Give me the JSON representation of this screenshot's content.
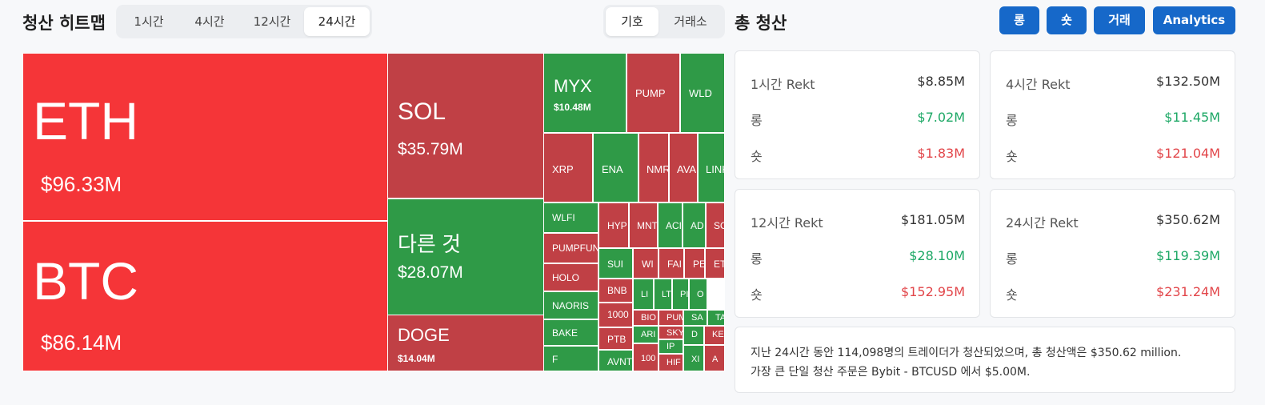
{
  "header": {
    "title": "청산 히트맵",
    "time_tabs": [
      "1시간",
      "4시간",
      "12시간",
      "24시간"
    ],
    "active_time_tab": "24시간",
    "group_tabs": [
      "기호",
      "거래소"
    ],
    "active_group_tab": "기호",
    "total_title": "총 청산",
    "actions": [
      "롱",
      "숏",
      "거래",
      "Analytics"
    ]
  },
  "treemap": {
    "tiles": [
      {
        "symbol": "ETH",
        "amount": "$96.33M",
        "side": "red"
      },
      {
        "symbol": "BTC",
        "amount": "$86.14M",
        "side": "red"
      },
      {
        "symbol": "SOL",
        "amount": "$35.79M",
        "side": "dark-red"
      },
      {
        "symbol": "다른 것",
        "amount": "$28.07M",
        "side": "green"
      },
      {
        "symbol": "DOGE",
        "amount": "$14.04M",
        "side": "dark-red"
      },
      {
        "symbol": "MYX",
        "amount": "$10.48M",
        "side": "green"
      },
      {
        "symbol": "PUMP",
        "amount": "",
        "side": "dark-red"
      },
      {
        "symbol": "WLD",
        "amount": "",
        "side": "green"
      },
      {
        "symbol": "XRP",
        "amount": "",
        "side": "dark-red"
      },
      {
        "symbol": "ENA",
        "amount": "",
        "side": "green"
      },
      {
        "symbol": "NMR",
        "amount": "",
        "side": "dark-red"
      },
      {
        "symbol": "AVA",
        "amount": "",
        "side": "dark-red"
      },
      {
        "symbol": "LINK",
        "amount": "",
        "side": "green"
      },
      {
        "symbol": "WLFI",
        "amount": "",
        "side": "green"
      },
      {
        "symbol": "PUMPFUN",
        "amount": "",
        "side": "dark-red"
      },
      {
        "symbol": "HOLO",
        "amount": "",
        "side": "dark-red"
      },
      {
        "symbol": "NAORIS",
        "amount": "",
        "side": "green"
      },
      {
        "symbol": "BAKE",
        "amount": "",
        "side": "green"
      },
      {
        "symbol": "F",
        "amount": "",
        "side": "green"
      },
      {
        "symbol": "HYP",
        "amount": "",
        "side": "dark-red"
      },
      {
        "symbol": "MNT",
        "amount": "",
        "side": "dark-red"
      },
      {
        "symbol": "ACI",
        "amount": "",
        "side": "green"
      },
      {
        "symbol": "AD",
        "amount": "",
        "side": "green"
      },
      {
        "symbol": "SO",
        "amount": "",
        "side": "dark-red"
      },
      {
        "symbol": "SUI",
        "amount": "",
        "side": "green"
      },
      {
        "symbol": "WI",
        "amount": "",
        "side": "dark-red"
      },
      {
        "symbol": "FAI",
        "amount": "",
        "side": "dark-red"
      },
      {
        "symbol": "PE",
        "amount": "",
        "side": "dark-red"
      },
      {
        "symbol": "ET",
        "amount": "",
        "side": "dark-red"
      },
      {
        "symbol": "BNB",
        "amount": "",
        "side": "dark-red"
      },
      {
        "symbol": "LI",
        "amount": "",
        "side": "green"
      },
      {
        "symbol": "LT",
        "amount": "",
        "side": "green"
      },
      {
        "symbol": "PI",
        "amount": "",
        "side": "green"
      },
      {
        "symbol": "O",
        "amount": "",
        "side": "green"
      },
      {
        "symbol": "1000",
        "amount": "",
        "side": "dark-red"
      },
      {
        "symbol": "BIO",
        "amount": "",
        "side": "dark-red"
      },
      {
        "symbol": "PUM",
        "amount": "",
        "side": "dark-red"
      },
      {
        "symbol": "TA",
        "amount": "",
        "side": "green"
      },
      {
        "symbol": "SA",
        "amount": "",
        "side": "green"
      },
      {
        "symbol": "PTB",
        "amount": "",
        "side": "dark-red"
      },
      {
        "symbol": "SKY",
        "amount": "",
        "side": "dark-red"
      },
      {
        "symbol": "ARI",
        "amount": "",
        "side": "green"
      },
      {
        "symbol": "D",
        "amount": "",
        "side": "green"
      },
      {
        "symbol": "KE",
        "amount": "",
        "side": "dark-red"
      },
      {
        "symbol": "IP",
        "amount": "",
        "side": "green"
      },
      {
        "symbol": "AVNT",
        "amount": "",
        "side": "green"
      },
      {
        "symbol": "100",
        "amount": "",
        "side": "dark-red"
      },
      {
        "symbol": "HIF",
        "amount": "",
        "side": "dark-red"
      },
      {
        "symbol": "XI",
        "amount": "",
        "side": "green"
      },
      {
        "symbol": "A",
        "amount": "",
        "side": "dark-red"
      }
    ]
  },
  "stats": [
    {
      "label": "1시간 Rekt",
      "total": "$8.85M",
      "long_label": "롱",
      "long": "$7.02M",
      "short_label": "숏",
      "short": "$1.83M"
    },
    {
      "label": "4시간 Rekt",
      "total": "$132.50M",
      "long_label": "롱",
      "long": "$11.45M",
      "short_label": "숏",
      "short": "$121.04M"
    },
    {
      "label": "12시간 Rekt",
      "total": "$181.05M",
      "long_label": "롱",
      "long": "$28.10M",
      "short_label": "숏",
      "short": "$152.95M"
    },
    {
      "label": "24시간 Rekt",
      "total": "$350.62M",
      "long_label": "롱",
      "long": "$119.39M",
      "short_label": "숏",
      "short": "$231.24M"
    }
  ],
  "summary": {
    "line1": "지난 24시간 동안 114,098명의 트레이더가 청산되었으며, 총 청산액은 $350.62 million.",
    "line2": "가장 큰 단일 청산 주문은 Bybit - BTCUSD 에서 $5.00M."
  },
  "colors": {
    "long": "#1ea866",
    "short": "#e2464a",
    "accent": "#1668c9",
    "tile_red": "#f53538",
    "tile_dark_red": "#c04045",
    "tile_green": "#2f9a47"
  }
}
